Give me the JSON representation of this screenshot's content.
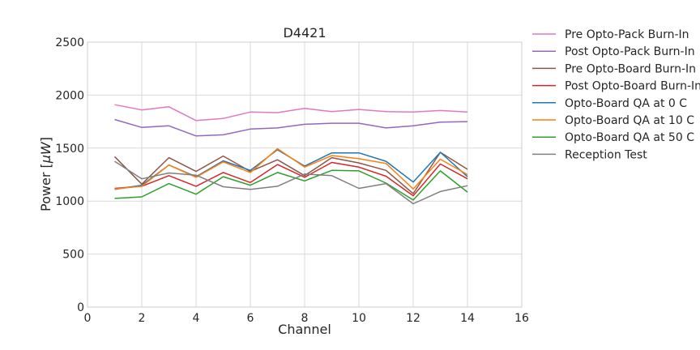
{
  "chart_data": {
    "type": "line",
    "title": "D4421",
    "xlabel": "Channel",
    "ylabel_prefix": "Power [",
    "ylabel_unit": "μW",
    "ylabel_suffix": "]",
    "xlim": [
      0,
      16
    ],
    "ylim": [
      0,
      2500
    ],
    "xticks": [
      0,
      2,
      4,
      6,
      8,
      10,
      12,
      14,
      16
    ],
    "yticks": [
      0,
      500,
      1000,
      1500,
      2000,
      2500
    ],
    "grid": true,
    "legend_position": "outside-right-top",
    "x": [
      1,
      2,
      3,
      4,
      5,
      6,
      7,
      8,
      9,
      10,
      11,
      12,
      13,
      14
    ],
    "series": [
      {
        "name": "Pre Opto-Pack Burn-In",
        "color": "#e377c2",
        "values": [
          1910,
          1860,
          1890,
          1760,
          1780,
          1840,
          1835,
          1875,
          1845,
          1865,
          1845,
          1840,
          1855,
          1840
        ]
      },
      {
        "name": "Post Opto-Pack Burn-In",
        "color": "#9467bd",
        "values": [
          1770,
          1695,
          1710,
          1615,
          1625,
          1680,
          1690,
          1725,
          1735,
          1735,
          1690,
          1710,
          1745,
          1750
        ]
      },
      {
        "name": "Pre Opto-Board Burn-In",
        "color": "#8c564b",
        "values": [
          1420,
          1160,
          1410,
          1280,
          1425,
          1280,
          1390,
          1240,
          1410,
          1360,
          1290,
          1070,
          1460,
          1300
        ]
      },
      {
        "name": "Post Opto-Board Burn-In",
        "color": "#d62728",
        "values": [
          1120,
          1140,
          1240,
          1140,
          1270,
          1175,
          1345,
          1225,
          1365,
          1320,
          1235,
          1050,
          1350,
          1210
        ]
      },
      {
        "name": "Opto-Board QA at 0 C",
        "color": "#1f77b4",
        "values": [
          1110,
          1150,
          1340,
          1230,
          1380,
          1290,
          1485,
          1330,
          1455,
          1455,
          1375,
          1180,
          1460,
          1230
        ]
      },
      {
        "name": "Opto-Board QA at 10 C",
        "color": "#ff7f0e",
        "values": [
          1115,
          1140,
          1340,
          1225,
          1370,
          1270,
          1495,
          1320,
          1430,
          1400,
          1355,
          1115,
          1395,
          1250
        ]
      },
      {
        "name": "Opto-Board QA at 50 C",
        "color": "#2ca02c",
        "values": [
          1025,
          1040,
          1165,
          1065,
          1230,
          1150,
          1270,
          1190,
          1290,
          1285,
          1170,
          1010,
          1285,
          1085
        ]
      },
      {
        "name": "Reception Test",
        "color": "#7f7f7f",
        "values": [
          1375,
          1210,
          1265,
          1245,
          1135,
          1110,
          1140,
          1255,
          1240,
          1120,
          1165,
          975,
          1090,
          1145
        ]
      }
    ]
  }
}
